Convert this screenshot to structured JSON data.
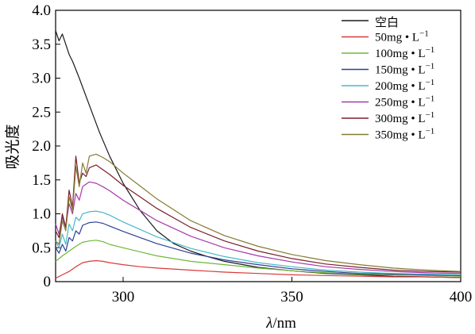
{
  "chart_data": {
    "type": "line",
    "xlabel_symbol": "λ",
    "xlabel_unit": "/nm",
    "ylabel": "吸光度",
    "xlim": [
      280,
      400
    ],
    "ylim": [
      0,
      4.0
    ],
    "xticks": [
      "300",
      "350",
      "400"
    ],
    "yticks": [
      "0",
      "0.5",
      "1.0",
      "1.5",
      "2.0",
      "2.5",
      "3.0",
      "3.5",
      "4.0"
    ],
    "legend_position": "top-right",
    "series": [
      {
        "name": "空白",
        "unit": "",
        "color": "#1a1a1a",
        "x": [
          280,
          281,
          282,
          283,
          284,
          285,
          287,
          290,
          293,
          296,
          300,
          305,
          310,
          315,
          320,
          325,
          330,
          340,
          350,
          360,
          370,
          380,
          390,
          400
        ],
        "y": [
          3.7,
          3.55,
          3.65,
          3.5,
          3.35,
          3.25,
          3.0,
          2.6,
          2.2,
          1.85,
          1.45,
          1.05,
          0.75,
          0.56,
          0.45,
          0.37,
          0.3,
          0.21,
          0.16,
          0.12,
          0.1,
          0.08,
          0.07,
          0.06
        ]
      },
      {
        "name": "50mg • L",
        "unit": "−1",
        "color": "#d93a3a",
        "x": [
          280,
          282,
          284,
          286,
          288,
          290,
          292,
          294,
          296,
          300,
          305,
          310,
          320,
          330,
          340,
          350,
          360,
          370,
          380,
          390,
          400
        ],
        "y": [
          0.05,
          0.1,
          0.15,
          0.22,
          0.28,
          0.3,
          0.31,
          0.3,
          0.28,
          0.25,
          0.22,
          0.2,
          0.17,
          0.14,
          0.12,
          0.1,
          0.09,
          0.08,
          0.07,
          0.07,
          0.06
        ]
      },
      {
        "name": "100mg • L",
        "unit": "−1",
        "color": "#6db83a",
        "x": [
          280,
          282,
          284,
          286,
          288,
          290,
          292,
          294,
          296,
          300,
          305,
          310,
          320,
          330,
          340,
          350,
          360,
          370,
          380,
          390,
          400
        ],
        "y": [
          0.3,
          0.38,
          0.45,
          0.52,
          0.58,
          0.6,
          0.61,
          0.59,
          0.55,
          0.5,
          0.44,
          0.38,
          0.3,
          0.25,
          0.2,
          0.16,
          0.13,
          0.11,
          0.1,
          0.09,
          0.08
        ]
      },
      {
        "name": "150mg • L",
        "unit": "−1",
        "color": "#2e3f94",
        "x": [
          280,
          281,
          282,
          283,
          284,
          285,
          286,
          287,
          288,
          290,
          292,
          294,
          296,
          300,
          305,
          310,
          320,
          330,
          340,
          350,
          360,
          370,
          380,
          390,
          400
        ],
        "y": [
          0.5,
          0.42,
          0.55,
          0.45,
          0.65,
          0.6,
          0.75,
          0.7,
          0.83,
          0.87,
          0.88,
          0.86,
          0.82,
          0.74,
          0.65,
          0.56,
          0.42,
          0.32,
          0.25,
          0.19,
          0.15,
          0.12,
          0.11,
          0.1,
          0.09
        ]
      },
      {
        "name": "200mg • L",
        "unit": "−1",
        "color": "#48b8c8",
        "x": [
          280,
          281,
          282,
          283,
          284,
          285,
          286,
          287,
          288,
          290,
          292,
          294,
          296,
          300,
          305,
          310,
          320,
          330,
          340,
          350,
          360,
          370,
          380,
          390,
          400
        ],
        "y": [
          0.6,
          0.5,
          0.7,
          0.55,
          0.85,
          0.75,
          0.95,
          0.9,
          1.0,
          1.03,
          1.04,
          1.02,
          0.98,
          0.88,
          0.77,
          0.66,
          0.49,
          0.37,
          0.28,
          0.22,
          0.17,
          0.14,
          0.12,
          0.11,
          0.1
        ]
      },
      {
        "name": "250mg • L",
        "unit": "−1",
        "color": "#a63aa8",
        "x": [
          280,
          281,
          282,
          283,
          284,
          285,
          286,
          287,
          288,
          290,
          292,
          294,
          296,
          300,
          305,
          310,
          320,
          330,
          340,
          350,
          360,
          370,
          380,
          390,
          400
        ],
        "y": [
          0.85,
          0.7,
          0.95,
          0.8,
          1.15,
          1.0,
          1.3,
          1.2,
          1.4,
          1.47,
          1.45,
          1.4,
          1.34,
          1.2,
          1.05,
          0.9,
          0.67,
          0.5,
          0.38,
          0.29,
          0.22,
          0.18,
          0.15,
          0.13,
          0.12
        ]
      },
      {
        "name": "300mg • L",
        "unit": "−1",
        "color": "#7a1f2a",
        "x": [
          280,
          281,
          282,
          283,
          284,
          285,
          286,
          287,
          288,
          289,
          290,
          292,
          294,
          296,
          300,
          305,
          310,
          320,
          330,
          340,
          350,
          360,
          370,
          380,
          390,
          400
        ],
        "y": [
          0.75,
          0.65,
          1.0,
          0.8,
          1.35,
          1.1,
          1.85,
          1.45,
          1.6,
          1.55,
          1.68,
          1.72,
          1.65,
          1.58,
          1.42,
          1.25,
          1.08,
          0.8,
          0.6,
          0.45,
          0.34,
          0.26,
          0.21,
          0.17,
          0.15,
          0.14
        ]
      },
      {
        "name": "350mg • L",
        "unit": "−1",
        "color": "#857a32",
        "x": [
          280,
          281,
          282,
          283,
          284,
          285,
          286,
          287,
          288,
          289,
          290,
          292,
          294,
          296,
          300,
          305,
          310,
          320,
          330,
          340,
          350,
          360,
          370,
          380,
          390,
          400
        ],
        "y": [
          0.6,
          0.55,
          0.9,
          0.75,
          1.25,
          1.05,
          1.7,
          1.4,
          1.75,
          1.6,
          1.85,
          1.88,
          1.83,
          1.77,
          1.6,
          1.41,
          1.22,
          0.9,
          0.68,
          0.52,
          0.4,
          0.31,
          0.25,
          0.2,
          0.17,
          0.15
        ]
      }
    ]
  }
}
